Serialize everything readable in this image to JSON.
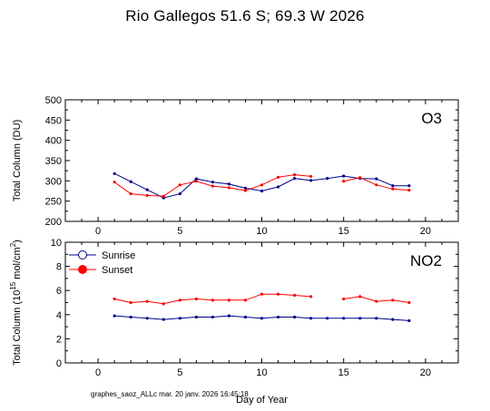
{
  "page": {
    "title": "Rio Gallegos  51.6 S; 69.3 W   2026",
    "footer": "graphes_saoz_ALLc  mar. 20 janv. 2026 16:45:18"
  },
  "colors": {
    "sunrise": "#00008b",
    "sunset": "#ff0000",
    "axis": "#000000"
  },
  "chart_data": [
    {
      "type": "line",
      "panel_label": "O3",
      "xlabel": "",
      "ylabel": "Total Column  (DU)",
      "xlim": [
        -2,
        22
      ],
      "ylim": [
        200,
        500
      ],
      "xticks": [
        0,
        5,
        10,
        15,
        20
      ],
      "yticks": [
        200,
        250,
        300,
        350,
        400,
        450,
        500
      ],
      "series": [
        {
          "name": "Sunrise",
          "color": "#00008b",
          "x": [
            1,
            2,
            3,
            4,
            5,
            6,
            7,
            8,
            9,
            10,
            11,
            12,
            13,
            14,
            15,
            16,
            17,
            18,
            19
          ],
          "y": [
            318,
            298,
            278,
            258,
            268,
            305,
            297,
            292,
            282,
            275,
            285,
            306,
            301,
            306,
            312,
            306,
            305,
            288,
            288
          ]
        },
        {
          "name": "Sunset",
          "color": "#ff0000",
          "segments": [
            {
              "x": [
                1,
                2,
                3,
                4,
                5,
                6,
                7,
                8,
                9,
                10,
                11,
                12,
                13
              ],
              "y": [
                297,
                268,
                264,
                262,
                290,
                299,
                287,
                283,
                276,
                290,
                309,
                315,
                311
              ]
            },
            {
              "x": [
                15,
                16,
                17,
                18,
                19
              ],
              "y": [
                299,
                308,
                290,
                280,
                277
              ]
            }
          ]
        }
      ]
    },
    {
      "type": "line",
      "panel_label": "NO2",
      "xlabel": "Day of Year",
      "ylabel": "Total Column (10",
      "ylabel_exp": "15",
      "ylabel_tail": " mol/cm",
      "ylabel_exp2": "2",
      "ylabel_end": ")",
      "xlim": [
        -2,
        22
      ],
      "ylim": [
        0,
        10
      ],
      "xticks": [
        0,
        5,
        10,
        15,
        20
      ],
      "yticks": [
        0,
        2,
        4,
        6,
        8,
        10
      ],
      "legend": {
        "placement": "top-left",
        "entries": [
          "Sunrise",
          "Sunset"
        ]
      },
      "series": [
        {
          "name": "Sunrise",
          "color": "#00008b",
          "x": [
            1,
            2,
            3,
            4,
            5,
            6,
            7,
            8,
            9,
            10,
            11,
            12,
            13,
            14,
            15,
            16,
            17,
            18,
            19
          ],
          "y": [
            3.9,
            3.8,
            3.7,
            3.6,
            3.7,
            3.8,
            3.8,
            3.9,
            3.8,
            3.7,
            3.8,
            3.8,
            3.7,
            3.7,
            3.7,
            3.7,
            3.7,
            3.6,
            3.5
          ]
        },
        {
          "name": "Sunset",
          "color": "#ff0000",
          "segments": [
            {
              "x": [
                1,
                2,
                3,
                4,
                5,
                6,
                7,
                8,
                9,
                10,
                11,
                12,
                13
              ],
              "y": [
                5.3,
                5.0,
                5.1,
                4.9,
                5.2,
                5.3,
                5.2,
                5.2,
                5.2,
                5.7,
                5.7,
                5.6,
                5.5
              ]
            },
            {
              "x": [
                15,
                16,
                17,
                18,
                19
              ],
              "y": [
                5.3,
                5.5,
                5.1,
                5.2,
                5.0
              ]
            }
          ]
        }
      ]
    }
  ]
}
